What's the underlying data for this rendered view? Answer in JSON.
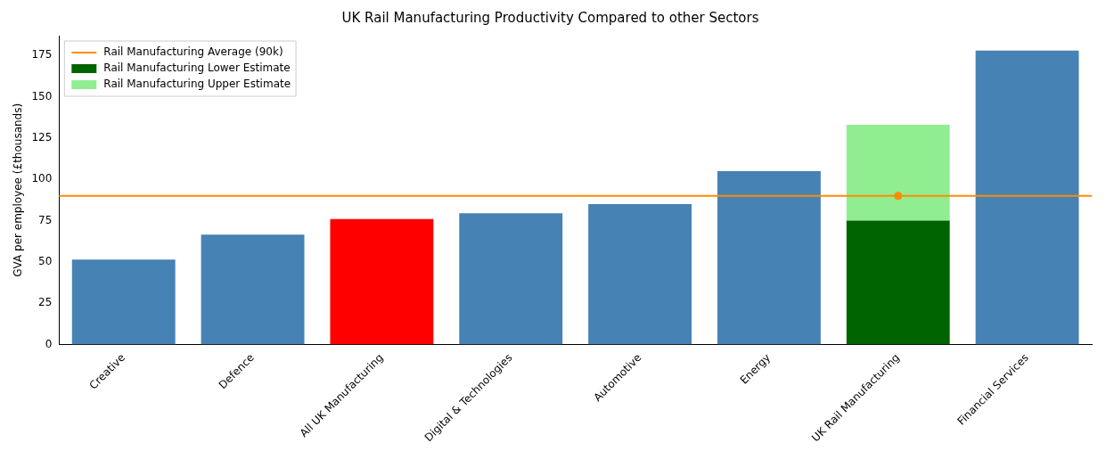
{
  "chart_data": {
    "type": "bar",
    "title": "UK Rail Manufacturing Productivity Compared to other Sectors",
    "ylabel": "GVA per employee (£thousands)",
    "categories": [
      "Creative",
      "Defence",
      "All UK Manufacturing",
      "Digital & Technologies",
      "Automotive",
      "Energy",
      "UK Rail Manufacturing",
      "Financial Services"
    ],
    "stacked": true,
    "series": [
      {
        "colors": [
          "#4682b4",
          "#4682b4",
          "#ff0000",
          "#4682b4",
          "#4682b4",
          "#4682b4",
          "#4682b4",
          "#4682b4"
        ],
        "values": [
          51.5,
          66.5,
          76,
          79.5,
          85,
          105,
          null,
          178
        ]
      },
      {
        "name": "Rail Manufacturing Lower Estimate",
        "color": "#006400",
        "values": [
          null,
          null,
          null,
          null,
          null,
          null,
          75,
          null
        ]
      },
      {
        "name": "Rail Manufacturing Upper Estimate",
        "color": "#90ee90",
        "values": [
          null,
          null,
          null,
          null,
          null,
          null,
          58,
          null
        ]
      },
      {
        "type": "scatter",
        "color": "#ff8c00",
        "x": [
          "UK Rail Manufacturing"
        ],
        "values": [
          90
        ]
      }
    ],
    "ref_lines": [
      {
        "axis": "y",
        "value": 90,
        "label": "Rail Manufacturing Average (90k)",
        "color": "#ff8c00"
      }
    ],
    "ylim": [
      0,
      187
    ],
    "yticks": [
      0,
      25,
      50,
      75,
      100,
      125,
      150,
      175
    ],
    "grid": false,
    "legend": "top left",
    "marker": "circle"
  }
}
